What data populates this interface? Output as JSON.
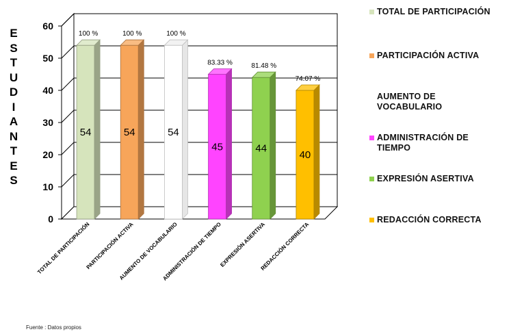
{
  "chart_data": {
    "type": "bar",
    "ylabel": "ESTUDIANTES",
    "ylim": [
      0,
      60
    ],
    "yticks": [
      0,
      10,
      20,
      30,
      40,
      50,
      60
    ],
    "grid": true,
    "legend_position": "right",
    "categories": [
      "TOTAL DE PARTICIPACIÓN",
      "PARTICIPACIÓN ACTIVA",
      "AUMENTO DE VOCABULARIO",
      "ADMINISTRACIÓN DE TIEMPO",
      "EXPRESIÓN ASERTIVA",
      "REDACCIÓN CORRECTA"
    ],
    "values": [
      54,
      54,
      54,
      45,
      44,
      40
    ],
    "percent_labels": [
      "100 %",
      "100 %",
      "100 %",
      "83.33 %",
      "81.48 %",
      "74.07 %"
    ],
    "colors": [
      "#d6e4bc",
      "#f7a55a",
      "#ffffff",
      "#ff44ff",
      "#8fd14f",
      "#ffbf00"
    ],
    "legend": [
      {
        "label": "TOTAL DE PARTICIPACIÓN",
        "color": "#d6e4bc"
      },
      {
        "label": "PARTICIPACIÓN ACTIVA",
        "color": "#f7a55a"
      },
      {
        "label": "AUMENTO DE VOCABULARIO",
        "color": "#ffffff"
      },
      {
        "label": "ADMINISTRACIÓN DE TIEMPO",
        "color": "#ff44ff"
      },
      {
        "label": "EXPRESIÓN ASERTIVA",
        "color": "#8fd14f"
      },
      {
        "label": "REDACCIÓN CORRECTA",
        "color": "#ffbf00"
      }
    ]
  },
  "source": "Fuente : Datos propios"
}
